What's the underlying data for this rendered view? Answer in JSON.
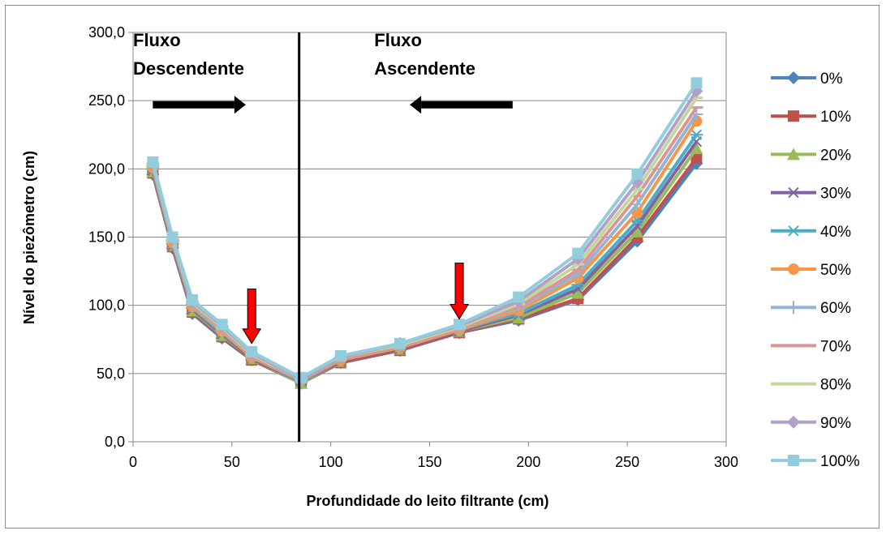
{
  "chart_data": {
    "type": "line",
    "title": "",
    "xlabel": "Profundidade do leito filtrante (cm)",
    "ylabel": "Nível do piezômetro (cm)",
    "xlim": [
      0,
      300
    ],
    "ylim": [
      0,
      300
    ],
    "xticks": [
      "0",
      "50",
      "100",
      "150",
      "200",
      "250",
      "300"
    ],
    "yticks": [
      "0,0",
      "50,0",
      "100,0",
      "150,0",
      "200,0",
      "250,0",
      "300,0"
    ],
    "grid": true,
    "legend_position": "right",
    "x": [
      10,
      20,
      30,
      45,
      60,
      85,
      105,
      135,
      165,
      195,
      225,
      255,
      285
    ],
    "series": [
      {
        "name": "0%",
        "color": "#4f81bd",
        "marker": "diamond",
        "values": [
          196,
          142,
          94,
          76,
          60,
          43,
          58,
          67,
          80,
          89,
          104,
          147,
          204
        ]
      },
      {
        "name": "10%",
        "color": "#c0504d",
        "marker": "square",
        "values": [
          197,
          143,
          95,
          77,
          60,
          43,
          58,
          67,
          80,
          90,
          105,
          150,
          208
        ]
      },
      {
        "name": "20%",
        "color": "#9bbb59",
        "marker": "triangle",
        "values": [
          198,
          144,
          96,
          78,
          61,
          43,
          59,
          68,
          81,
          91,
          109,
          154,
          215
        ]
      },
      {
        "name": "30%",
        "color": "#8064a2",
        "marker": "x",
        "values": [
          199,
          144,
          97,
          79,
          61,
          44,
          59,
          68,
          81,
          93,
          112,
          158,
          220
        ]
      },
      {
        "name": "40%",
        "color": "#4bacc6",
        "marker": "star",
        "values": [
          200,
          145,
          98,
          80,
          62,
          44,
          60,
          69,
          82,
          94,
          115,
          162,
          225
        ]
      },
      {
        "name": "50%",
        "color": "#f79646",
        "marker": "circle",
        "values": [
          201,
          146,
          99,
          81,
          62,
          45,
          60,
          69,
          82,
          96,
          120,
          168,
          235
        ]
      },
      {
        "name": "60%",
        "color": "#95b3d7",
        "marker": "plus",
        "values": [
          202,
          147,
          100,
          82,
          63,
          45,
          61,
          70,
          83,
          98,
          123,
          174,
          240
        ]
      },
      {
        "name": "70%",
        "color": "#da9694",
        "marker": "dash",
        "values": [
          202,
          147,
          101,
          83,
          63,
          45,
          61,
          70,
          83,
          99,
          126,
          180,
          245
        ]
      },
      {
        "name": "80%",
        "color": "#c4d79b",
        "marker": "dash",
        "values": [
          203,
          148,
          102,
          84,
          64,
          46,
          62,
          71,
          84,
          101,
          130,
          185,
          252
        ]
      },
      {
        "name": "90%",
        "color": "#b1a0c7",
        "marker": "diamond",
        "values": [
          204,
          149,
          103,
          85,
          65,
          46,
          62,
          72,
          85,
          103,
          134,
          190,
          257
        ]
      },
      {
        "name": "100%",
        "color": "#93cddd",
        "marker": "square",
        "values": [
          205,
          150,
          104,
          86,
          66,
          47,
          63,
          72,
          86,
          106,
          138,
          196,
          263
        ]
      }
    ],
    "vertical_line": {
      "x": 84,
      "color": "#000000"
    },
    "annotations": [
      {
        "text": "Fluxo",
        "x": 0,
        "y": 290
      },
      {
        "text": "Descendente",
        "x": 0,
        "y": 269
      },
      {
        "text": "Fluxo",
        "x": 122,
        "y": 290
      },
      {
        "text": "Ascendente",
        "x": 122,
        "y": 269
      }
    ],
    "flow_arrows": [
      {
        "direction": "right",
        "x_from": 10,
        "x_to": 57,
        "y": 247
      },
      {
        "direction": "left",
        "x_from": 192,
        "x_to": 140,
        "y": 247
      }
    ],
    "marker_arrows": [
      {
        "x": 60,
        "y_from": 112,
        "y_to": 72,
        "color": "#ff0000"
      },
      {
        "x": 165,
        "y_from": 131,
        "y_to": 90,
        "color": "#ff0000"
      }
    ]
  }
}
